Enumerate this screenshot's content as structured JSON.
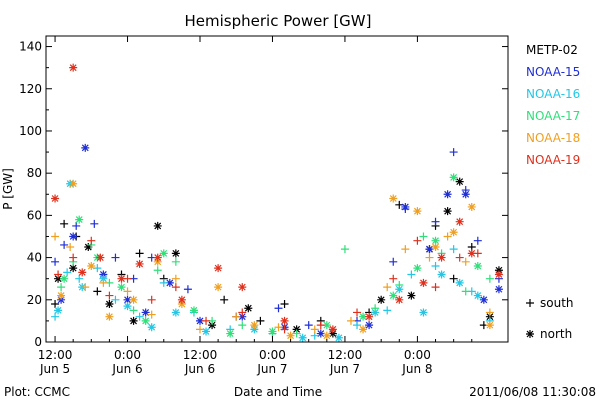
{
  "chart_data": {
    "type": "scatter",
    "title": "Hemispheric Power [GW]",
    "ylabel": "P [GW]",
    "xlabel": "Date and Time",
    "ylim": [
      0,
      145
    ],
    "x_unit": "hours since 2011-06-05 12:00 UT",
    "xlim": [
      -1.5,
      75
    ],
    "yticks": [
      0,
      20,
      40,
      60,
      80,
      100,
      120,
      140
    ],
    "xticks": [
      {
        "x": 0,
        "time": "12:00",
        "date": "Jun 5"
      },
      {
        "x": 12,
        "time": "0:00",
        "date": "Jun 6"
      },
      {
        "x": 24,
        "time": "12:00",
        "date": "Jun 6"
      },
      {
        "x": 36,
        "time": "0:00",
        "date": "Jun 7"
      },
      {
        "x": 48,
        "time": "12:00",
        "date": "Jun 7"
      },
      {
        "x": 60,
        "time": "0:00",
        "date": "Jun 8"
      }
    ],
    "legend": [
      {
        "name": "METP-02",
        "color": "#000000"
      },
      {
        "name": "NOAA-15",
        "color": "#1f2fd6"
      },
      {
        "name": "NOAA-16",
        "color": "#22c8e6"
      },
      {
        "name": "NOAA-17",
        "color": "#2fe07a"
      },
      {
        "name": "NOAA-18",
        "color": "#f0a020"
      },
      {
        "name": "NOAA-19",
        "color": "#e0301c"
      }
    ],
    "marker_legend": [
      {
        "symbol": "+",
        "label": "south"
      },
      {
        "symbol": "*",
        "label": "north"
      }
    ],
    "series": [
      {
        "name": "METP-02",
        "color": "#000000",
        "south": [
          [
            0,
            18
          ],
          [
            1.5,
            56
          ],
          [
            3.5,
            50
          ],
          [
            7,
            24
          ],
          [
            11,
            32
          ],
          [
            14,
            42
          ],
          [
            18,
            30
          ],
          [
            28,
            20
          ],
          [
            34,
            10
          ],
          [
            38,
            18
          ],
          [
            44,
            10
          ],
          [
            52,
            14
          ],
          [
            57,
            65
          ],
          [
            63,
            55
          ],
          [
            66,
            30
          ],
          [
            69,
            45
          ],
          [
            71,
            8
          ]
        ],
        "north": [
          [
            0.5,
            30
          ],
          [
            3,
            35
          ],
          [
            5.5,
            45
          ],
          [
            9,
            18
          ],
          [
            13,
            10
          ],
          [
            17,
            55
          ],
          [
            20,
            42
          ],
          [
            26,
            8
          ],
          [
            32,
            16
          ],
          [
            40,
            6
          ],
          [
            46,
            4
          ],
          [
            54,
            20
          ],
          [
            59,
            22
          ],
          [
            62,
            44
          ],
          [
            65,
            62
          ],
          [
            67,
            76
          ],
          [
            72,
            12
          ],
          [
            73.5,
            34
          ]
        ]
      },
      {
        "name": "NOAA-15",
        "color": "#1f2fd6",
        "south": [
          [
            0,
            38
          ],
          [
            1.5,
            46
          ],
          [
            3.5,
            55
          ],
          [
            6.5,
            56
          ],
          [
            10,
            40
          ],
          [
            13,
            30
          ],
          [
            16,
            40
          ],
          [
            22,
            25
          ],
          [
            30,
            12
          ],
          [
            37,
            16
          ],
          [
            42,
            8
          ],
          [
            50,
            10
          ],
          [
            56,
            38
          ],
          [
            58,
            63
          ],
          [
            63,
            57
          ],
          [
            66,
            90
          ],
          [
            68,
            72
          ],
          [
            70,
            48
          ],
          [
            73.5,
            30
          ]
        ],
        "north": [
          [
            1,
            20
          ],
          [
            3,
            50
          ],
          [
            5,
            92
          ],
          [
            8,
            32
          ],
          [
            12,
            20
          ],
          [
            15,
            14
          ],
          [
            19,
            28
          ],
          [
            24,
            10
          ],
          [
            31,
            12
          ],
          [
            38,
            7
          ],
          [
            44,
            4
          ],
          [
            52,
            8
          ],
          [
            58,
            64
          ],
          [
            62,
            44
          ],
          [
            65,
            70
          ],
          [
            68,
            70
          ],
          [
            71,
            20
          ],
          [
            73.5,
            25
          ]
        ]
      },
      {
        "name": "NOAA-16",
        "color": "#22c8e6",
        "south": [
          [
            0,
            12
          ],
          [
            2,
            33
          ],
          [
            4,
            30
          ],
          [
            7,
            35
          ],
          [
            10,
            20
          ],
          [
            14,
            12
          ],
          [
            18,
            28
          ],
          [
            23,
            14
          ],
          [
            29,
            6
          ],
          [
            36,
            4
          ],
          [
            43,
            3
          ],
          [
            50,
            8
          ],
          [
            55,
            15
          ],
          [
            59,
            32
          ],
          [
            63,
            36
          ],
          [
            66,
            44
          ],
          [
            69,
            24
          ],
          [
            72,
            10
          ]
        ],
        "north": [
          [
            0.5,
            15
          ],
          [
            2.5,
            75
          ],
          [
            4.5,
            26
          ],
          [
            8,
            30
          ],
          [
            12,
            17
          ],
          [
            16,
            7
          ],
          [
            20,
            14
          ],
          [
            25,
            5
          ],
          [
            33,
            6
          ],
          [
            41,
            2
          ],
          [
            47,
            2
          ],
          [
            53,
            14
          ],
          [
            57,
            25
          ],
          [
            61,
            14
          ],
          [
            64,
            32
          ],
          [
            67,
            28
          ],
          [
            70,
            22
          ]
        ]
      },
      {
        "name": "NOAA-17",
        "color": "#2fe07a",
        "south": [
          [
            1,
            26
          ],
          [
            3,
            38
          ],
          [
            6,
            46
          ],
          [
            9,
            28
          ],
          [
            13,
            15
          ],
          [
            17,
            34
          ],
          [
            20,
            38
          ],
          [
            26,
            10
          ],
          [
            31,
            8
          ],
          [
            40,
            4
          ],
          [
            48,
            44
          ],
          [
            53,
            16
          ],
          [
            57,
            27
          ],
          [
            61,
            50
          ],
          [
            64,
            42
          ],
          [
            68,
            24
          ],
          [
            72,
            30
          ]
        ],
        "north": [
          [
            1.5,
            30
          ],
          [
            4,
            58
          ],
          [
            7,
            40
          ],
          [
            11,
            26
          ],
          [
            15,
            10
          ],
          [
            18,
            42
          ],
          [
            23,
            15
          ],
          [
            29,
            4
          ],
          [
            36,
            5
          ],
          [
            45,
            8
          ],
          [
            51,
            12
          ],
          [
            56,
            22
          ],
          [
            60,
            35
          ],
          [
            63,
            48
          ],
          [
            66,
            78
          ],
          [
            70,
            36
          ]
        ]
      },
      {
        "name": "NOAA-18",
        "color": "#f0a020",
        "south": [
          [
            0,
            50
          ],
          [
            2.5,
            45
          ],
          [
            5,
            26
          ],
          [
            8,
            28
          ],
          [
            12,
            24
          ],
          [
            16,
            13
          ],
          [
            20,
            30
          ],
          [
            24,
            6
          ],
          [
            30,
            12
          ],
          [
            37,
            7
          ],
          [
            43,
            6
          ],
          [
            49,
            10
          ],
          [
            55,
            26
          ],
          [
            58,
            44
          ],
          [
            62,
            40
          ],
          [
            65,
            50
          ],
          [
            68,
            38
          ],
          [
            72,
            14
          ]
        ],
        "north": [
          [
            1,
            22
          ],
          [
            3,
            75
          ],
          [
            6,
            36
          ],
          [
            9,
            12
          ],
          [
            13,
            20
          ],
          [
            17,
            38
          ],
          [
            21,
            18
          ],
          [
            27,
            26
          ],
          [
            33,
            8
          ],
          [
            39,
            3
          ],
          [
            45,
            3
          ],
          [
            51,
            6
          ],
          [
            56,
            68
          ],
          [
            60,
            62
          ],
          [
            63,
            45
          ],
          [
            66,
            52
          ],
          [
            69,
            64
          ],
          [
            72,
            8
          ]
        ]
      },
      {
        "name": "NOAA-19",
        "color": "#e0301c",
        "south": [
          [
            0.5,
            32
          ],
          [
            3,
            40
          ],
          [
            6,
            48
          ],
          [
            9,
            22
          ],
          [
            12,
            30
          ],
          [
            16,
            20
          ],
          [
            20,
            26
          ],
          [
            25,
            10
          ],
          [
            31,
            14
          ],
          [
            38,
            6
          ],
          [
            44,
            8
          ],
          [
            50,
            14
          ],
          [
            56,
            30
          ],
          [
            60,
            48
          ],
          [
            63,
            26
          ],
          [
            67,
            40
          ],
          [
            70,
            42
          ]
        ],
        "north": [
          [
            0,
            68
          ],
          [
            3,
            130
          ],
          [
            4.5,
            33
          ],
          [
            7.5,
            40
          ],
          [
            11,
            30
          ],
          [
            14,
            37
          ],
          [
            17,
            40
          ],
          [
            21,
            20
          ],
          [
            27,
            35
          ],
          [
            31,
            26
          ],
          [
            38,
            10
          ],
          [
            46,
            6
          ],
          [
            52,
            12
          ],
          [
            57,
            20
          ],
          [
            61,
            28
          ],
          [
            64,
            40
          ],
          [
            67,
            57
          ],
          [
            69,
            42
          ],
          [
            73.5,
            32
          ]
        ]
      }
    ]
  },
  "footer": {
    "plot_credit": "Plot: CCMC",
    "timestamp": "2011/06/08 11:30:08"
  }
}
